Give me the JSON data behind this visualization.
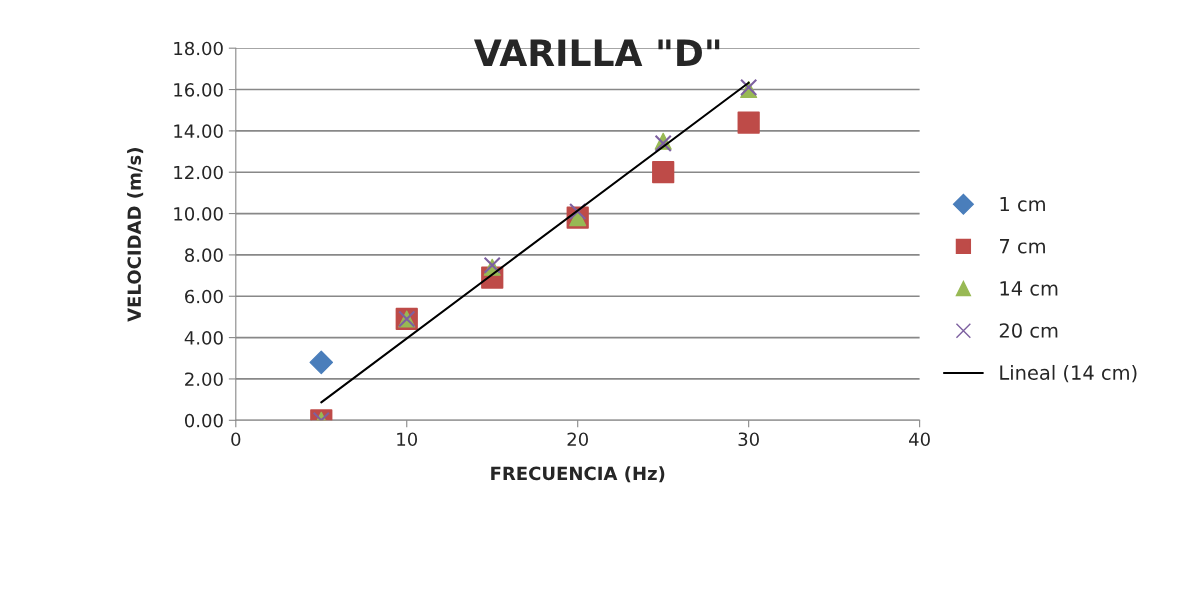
{
  "chart_data": {
    "type": "scatter",
    "title": "VARILLA \"D\"",
    "xlabel": "FRECUENCIA (Hz)",
    "ylabel": "VELOCIDAD (m/s)",
    "x": [
      5,
      10,
      15,
      20,
      25,
      30
    ],
    "series": [
      {
        "name": "1 cm",
        "color": "#4a7ebb",
        "marker": "diamond",
        "values": [
          2.8,
          null,
          null,
          null,
          null,
          null
        ]
      },
      {
        "name": "7 cm",
        "color": "#be4b48",
        "marker": "square",
        "values": [
          0,
          4.9,
          6.9,
          9.8,
          12.0,
          14.4
        ]
      },
      {
        "name": "14 cm",
        "color": "#98b954",
        "marker": "triangle",
        "values": [
          0,
          4.9,
          7.4,
          9.8,
          13.5,
          16.0
        ]
      },
      {
        "name": "20 cm",
        "color": "#7d60a0",
        "marker": "cross",
        "values": [
          0,
          4.9,
          7.5,
          10.1,
          13.4,
          16.1
        ]
      },
      {
        "name": "Lineal (14 cm)",
        "type": "line",
        "color": "#000000",
        "marker": "none",
        "x": [
          5,
          30
        ],
        "values": [
          0.87,
          16.33
        ]
      }
    ],
    "xlim": [
      0,
      40
    ],
    "xticks": [
      0,
      10,
      20,
      30,
      40
    ],
    "ylim": [
      0,
      18
    ],
    "yticks": [
      {
        "value": 0,
        "label": "0.00"
      },
      {
        "value": 2,
        "label": "2.00"
      },
      {
        "value": 4,
        "label": "4.00"
      },
      {
        "value": 6,
        "label": "6.00"
      },
      {
        "value": 8,
        "label": "8.00"
      },
      {
        "value": 10,
        "label": "10.00"
      },
      {
        "value": 12,
        "label": "12.00"
      },
      {
        "value": 14,
        "label": "14.00"
      },
      {
        "value": 16,
        "label": "16.00"
      },
      {
        "value": 18,
        "label": "18.00"
      }
    ],
    "grid": "y",
    "legend": "right"
  }
}
